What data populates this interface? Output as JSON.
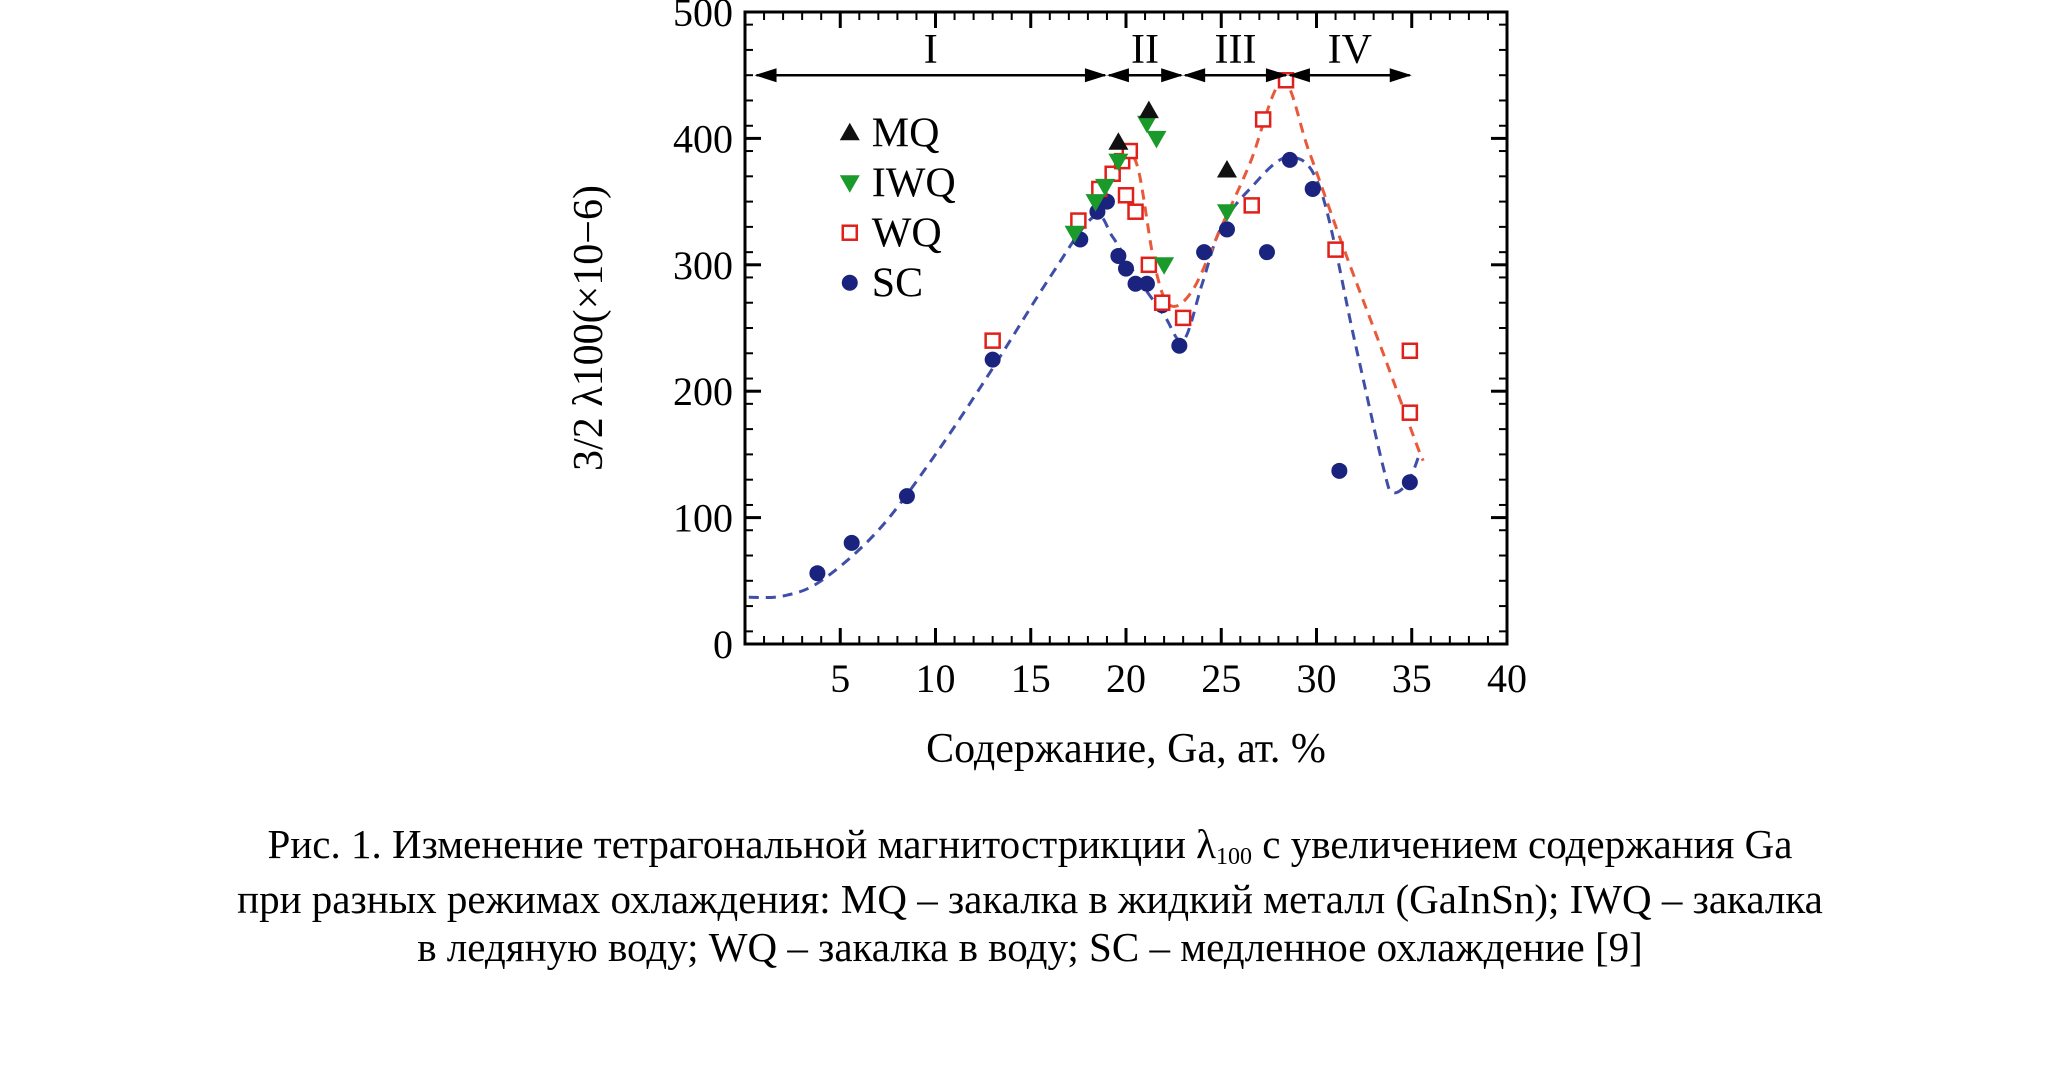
{
  "chart_data": {
    "type": "scatter",
    "xlabel": "Содержание, Ga, ат. %",
    "ylabel_prefix": "3/2 λ100",
    "ylabel_suffix": "(×10−6)",
    "xlim": [
      0,
      40
    ],
    "ylim": [
      0,
      500
    ],
    "xticks": [
      "5",
      "10",
      "15",
      "20",
      "25",
      "30",
      "35",
      "40"
    ],
    "xtick_values": [
      5,
      10,
      15,
      20,
      25,
      30,
      35,
      40
    ],
    "yticks": [
      "0",
      "100",
      "200",
      "300",
      "400",
      "500"
    ],
    "ytick_values": [
      0,
      100,
      200,
      300,
      400,
      500
    ],
    "grid": false,
    "legend_placement": "upper-left",
    "regions": [
      {
        "label": "I",
        "x_start": 0.5,
        "x_end": 19
      },
      {
        "label": "II",
        "x_start": 19,
        "x_end": 23
      },
      {
        "label": "III",
        "x_start": 23,
        "x_end": 28.5
      },
      {
        "label": "IV",
        "x_start": 28.5,
        "x_end": 35
      }
    ],
    "series": [
      {
        "name": "MQ",
        "marker": "triangle-up",
        "color": "#111111",
        "points": [
          [
            19.6,
            397
          ],
          [
            21.2,
            422
          ],
          [
            25.3,
            375
          ]
        ]
      },
      {
        "name": "IWQ",
        "marker": "triangle-down",
        "color": "#1a9a2a",
        "points": [
          [
            17.3,
            325
          ],
          [
            18.4,
            350
          ],
          [
            18.9,
            362
          ],
          [
            19.6,
            382
          ],
          [
            21.1,
            412
          ],
          [
            21.6,
            400
          ],
          [
            22.0,
            300
          ],
          [
            25.3,
            342
          ]
        ]
      },
      {
        "name": "WQ",
        "marker": "square-open",
        "color": "#e0201a",
        "points": [
          [
            13.0,
            240
          ],
          [
            17.5,
            335
          ],
          [
            18.6,
            360
          ],
          [
            19.3,
            372
          ],
          [
            19.8,
            382
          ],
          [
            20.2,
            390
          ],
          [
            20.0,
            355
          ],
          [
            20.5,
            342
          ],
          [
            21.2,
            300
          ],
          [
            21.9,
            270
          ],
          [
            23.0,
            258
          ],
          [
            26.6,
            347
          ],
          [
            27.2,
            415
          ],
          [
            28.4,
            446
          ],
          [
            31.0,
            312
          ],
          [
            34.9,
            232
          ],
          [
            34.9,
            183
          ]
        ]
      },
      {
        "name": "SC",
        "marker": "circle",
        "color": "#1a237e",
        "points": [
          [
            3.8,
            56
          ],
          [
            5.6,
            80
          ],
          [
            8.5,
            117
          ],
          [
            13.0,
            225
          ],
          [
            17.6,
            320
          ],
          [
            18.5,
            342
          ],
          [
            19.0,
            350
          ],
          [
            19.6,
            307
          ],
          [
            20.0,
            297
          ],
          [
            20.5,
            285
          ],
          [
            21.1,
            285
          ],
          [
            21.9,
            268
          ],
          [
            22.8,
            236
          ],
          [
            24.1,
            310
          ],
          [
            25.3,
            328
          ],
          [
            27.4,
            310
          ],
          [
            28.6,
            383
          ],
          [
            29.8,
            360
          ],
          [
            31.2,
            137
          ],
          [
            34.9,
            128
          ]
        ]
      }
    ],
    "fits": [
      {
        "series": "SC",
        "color": "#3f4fa8",
        "points": [
          [
            0.2,
            37
          ],
          [
            2,
            38
          ],
          [
            4,
            50
          ],
          [
            7,
            90
          ],
          [
            10,
            150
          ],
          [
            13,
            218
          ],
          [
            16,
            290
          ],
          [
            18.3,
            338
          ],
          [
            19.3,
            322
          ],
          [
            20.5,
            292
          ],
          [
            22,
            260
          ],
          [
            23,
            240
          ],
          [
            24,
            285
          ],
          [
            25,
            330
          ],
          [
            26.5,
            360
          ],
          [
            28.5,
            385
          ],
          [
            30.2,
            360
          ],
          [
            32,
            240
          ],
          [
            33.5,
            140
          ],
          [
            34,
            120
          ],
          [
            34.8,
            128
          ],
          [
            35.4,
            150
          ]
        ]
      },
      {
        "series": "WQ",
        "color": "#e85a3a",
        "points": [
          [
            18.8,
            360
          ],
          [
            19.8,
            385
          ],
          [
            20.6,
            378
          ],
          [
            21.5,
            300
          ],
          [
            22.3,
            268
          ],
          [
            23.5,
            280
          ],
          [
            25,
            330
          ],
          [
            26.5,
            380
          ],
          [
            28.2,
            445
          ],
          [
            29.6,
            390
          ],
          [
            31.5,
            310
          ],
          [
            33.5,
            230
          ],
          [
            35.2,
            160
          ],
          [
            35.6,
            145
          ]
        ]
      }
    ]
  },
  "caption": {
    "line1_a": "Рис. 1. Изменение тетрагональной магнитострикции λ",
    "line1_sub": "100",
    "line1_b": " с увеличением содержания Ga",
    "line2": "при разных режимах охлаждения: MQ – закалка в жидкий металл (GaInSn); IWQ – закалка",
    "line3": "в ледяную воду; WQ – закалка в воду; SC – медленное охлаждение [9]"
  }
}
